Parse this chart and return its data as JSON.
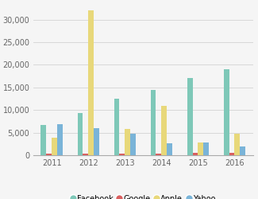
{
  "years": [
    2011,
    2012,
    2013,
    2014,
    2015,
    2016
  ],
  "facebook": [
    6700,
    9400,
    12500,
    14500,
    17000,
    19000
  ],
  "google": [
    400,
    400,
    400,
    400,
    600,
    600
  ],
  "apple": [
    3800,
    32000,
    5800,
    11000,
    2800,
    4800
  ],
  "yahoo": [
    6800,
    5900,
    4700,
    2700,
    2800,
    2000
  ],
  "colors": {
    "facebook": "#7ec8b8",
    "google": "#d95f5f",
    "apple": "#e8d87a",
    "yahoo": "#7ab4d8"
  },
  "ylim": [
    0,
    33000
  ],
  "yticks": [
    0,
    5000,
    10000,
    15000,
    20000,
    25000,
    30000
  ],
  "bg_color": "#f5f5f5",
  "grid_color": "#d8d8d8",
  "bar_width": 0.15,
  "legend_labels": [
    "Facebook",
    "Google",
    "Apple",
    "Yahoo"
  ],
  "legend_companies": [
    "facebook",
    "google",
    "apple",
    "yahoo"
  ]
}
